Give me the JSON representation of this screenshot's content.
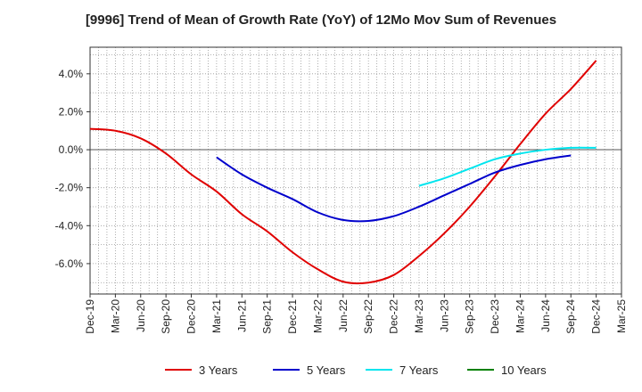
{
  "chart_data": {
    "type": "line",
    "title": "[9996]  Trend of Mean of Growth Rate (YoY) of 12Mo Mov Sum of Revenues",
    "xlabel": "",
    "ylabel": "",
    "ylim": [
      -7.6,
      5.4
    ],
    "y_ticks": [
      {
        "value": 4,
        "label": "4.0%"
      },
      {
        "value": 2,
        "label": "2.0%"
      },
      {
        "value": 0,
        "label": "0.0%"
      },
      {
        "value": -2,
        "label": "-2.0%"
      },
      {
        "value": -4,
        "label": "-4.0%"
      },
      {
        "value": -6,
        "label": "-6.0%"
      }
    ],
    "x_ticks": [
      "Dec-19",
      "Mar-20",
      "Jun-20",
      "Sep-20",
      "Dec-20",
      "Mar-21",
      "Jun-21",
      "Sep-21",
      "Dec-21",
      "Mar-22",
      "Jun-22",
      "Sep-22",
      "Dec-22",
      "Mar-23",
      "Jun-23",
      "Sep-23",
      "Dec-23",
      "Mar-24",
      "Jun-24",
      "Sep-24",
      "Dec-24",
      "Mar-25"
    ],
    "grid": true,
    "legend_position": "bottom",
    "series": [
      {
        "name": "3 Years",
        "color": "#e00000",
        "points": [
          [
            0,
            1.1
          ],
          [
            1,
            1.0
          ],
          [
            2,
            0.6
          ],
          [
            3,
            -0.2
          ],
          [
            4,
            -1.3
          ],
          [
            5,
            -2.2
          ],
          [
            6,
            -3.4
          ],
          [
            7,
            -4.3
          ],
          [
            8,
            -5.4
          ],
          [
            9,
            -6.3
          ],
          [
            10,
            -6.95
          ],
          [
            11,
            -7.0
          ],
          [
            12,
            -6.6
          ],
          [
            13,
            -5.6
          ],
          [
            14,
            -4.4
          ],
          [
            15,
            -3.0
          ],
          [
            16,
            -1.4
          ],
          [
            17,
            0.3
          ],
          [
            18,
            1.9
          ],
          [
            19,
            3.2
          ],
          [
            20,
            4.7
          ]
        ]
      },
      {
        "name": "5 Years",
        "color": "#0000cc",
        "points": [
          [
            5,
            -0.4
          ],
          [
            6,
            -1.3
          ],
          [
            7,
            -2.0
          ],
          [
            8,
            -2.6
          ],
          [
            9,
            -3.3
          ],
          [
            10,
            -3.7
          ],
          [
            11,
            -3.75
          ],
          [
            12,
            -3.5
          ],
          [
            13,
            -3.0
          ],
          [
            14,
            -2.4
          ],
          [
            15,
            -1.8
          ],
          [
            16,
            -1.2
          ],
          [
            17,
            -0.8
          ],
          [
            18,
            -0.5
          ],
          [
            19,
            -0.3
          ]
        ]
      },
      {
        "name": "7 Years",
        "color": "#00e5ee",
        "points": [
          [
            13,
            -1.9
          ],
          [
            14,
            -1.5
          ],
          [
            15,
            -1.0
          ],
          [
            16,
            -0.5
          ],
          [
            17,
            -0.2
          ],
          [
            18,
            0.0
          ],
          [
            19,
            0.1
          ],
          [
            20,
            0.1
          ]
        ]
      },
      {
        "name": "10 Years",
        "color": "#008000",
        "points": []
      }
    ]
  }
}
